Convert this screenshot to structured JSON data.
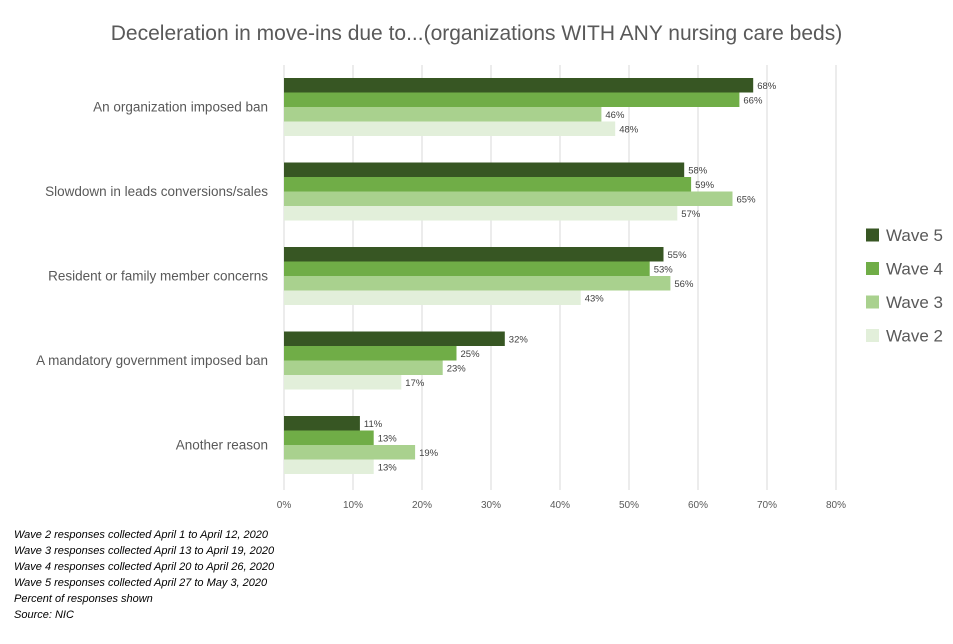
{
  "chart_data": {
    "type": "bar",
    "orientation": "horizontal",
    "title": "Deceleration in move-ins due to...(organizations WITH ANY nursing care beds)",
    "categories": [
      "An organization imposed ban",
      "Slowdown in leads conversions/sales",
      "Resident or family member concerns",
      "A mandatory government imposed ban",
      "Another reason"
    ],
    "series": [
      {
        "name": "Wave 5",
        "color": "#375623",
        "values": [
          68,
          58,
          55,
          32,
          11
        ]
      },
      {
        "name": "Wave 4",
        "color": "#70ad47",
        "values": [
          66,
          59,
          53,
          25,
          13
        ]
      },
      {
        "name": "Wave 3",
        "color": "#a9d18e",
        "values": [
          46,
          65,
          56,
          23,
          19
        ]
      },
      {
        "name": "Wave 2",
        "color": "#e2efda",
        "values": [
          48,
          57,
          43,
          17,
          13
        ]
      }
    ],
    "xlim": [
      0,
      80
    ],
    "xticks": [
      "0%",
      "10%",
      "20%",
      "30%",
      "40%",
      "50%",
      "60%",
      "70%",
      "80%"
    ],
    "value_suffix": "%",
    "grid": true,
    "legend_position": "right"
  },
  "notes": [
    "Wave 2 responses collected  April 1 to April 12, 2020",
    "Wave 3 responses collected  April 13 to April 19, 2020",
    "Wave 4 responses collected  April 20 to April 26, 2020",
    "Wave 5 responses collected  April 27 to May 3, 2020",
    "Percent  of responses shown",
    "Source: NIC"
  ]
}
